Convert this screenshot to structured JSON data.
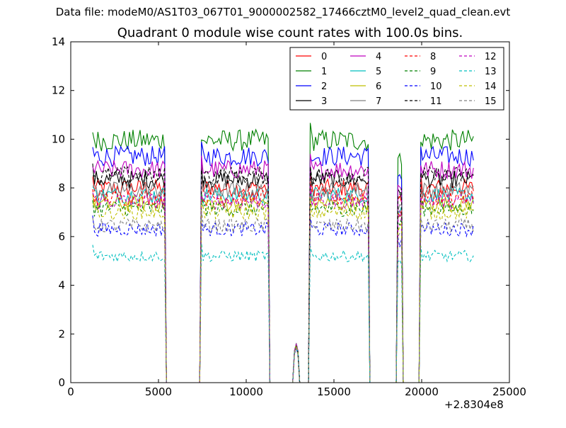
{
  "suptitle": "Data file: modeM0/AS1T03_067T01_9000002582_17466cztM0_level2_quad_clean.evt",
  "chart_data": {
    "type": "line",
    "title": "Quadrant 0 module wise count rates with 100.0s bins.",
    "xlabel": "",
    "ylabel": "",
    "x_offset_label": "+2.8304e8",
    "xlim": [
      0,
      25000
    ],
    "ylim": [
      0,
      14
    ],
    "xticks": [
      0,
      5000,
      10000,
      15000,
      20000,
      25000
    ],
    "xtick_labels": [
      "0",
      "5000",
      "10000",
      "15000",
      "20000",
      "25000"
    ],
    "yticks": [
      0,
      2,
      4,
      6,
      8,
      10,
      12,
      14
    ],
    "ytick_labels": [
      "0",
      "2",
      "4",
      "6",
      "8",
      "10",
      "12",
      "14"
    ],
    "grid": false,
    "legend_position": "top-right",
    "legend_columns": 4,
    "observation_segments": [
      {
        "start": 1250,
        "end": 5350,
        "shape": "plateau"
      },
      {
        "start": 7400,
        "end": 11300,
        "shape": "plateau"
      },
      {
        "start": 12700,
        "end": 13000,
        "shape": "bump"
      },
      {
        "start": 13650,
        "end": 17000,
        "shape": "plateau"
      },
      {
        "start": 18650,
        "end": 18850,
        "shape": "spike"
      },
      {
        "start": 19950,
        "end": 22950,
        "shape": "plateau"
      }
    ],
    "series": [
      {
        "name": "0",
        "color": "#ff0000",
        "dash": "solid",
        "level": 8.0
      },
      {
        "name": "1",
        "color": "#008000",
        "dash": "solid",
        "level": 9.95
      },
      {
        "name": "2",
        "color": "#0000ff",
        "dash": "solid",
        "level": 9.3
      },
      {
        "name": "3",
        "color": "#000000",
        "dash": "solid",
        "level": 8.35
      },
      {
        "name": "4",
        "color": "#bf00bf",
        "dash": "solid",
        "level": 8.75
      },
      {
        "name": "5",
        "color": "#00bfbf",
        "dash": "solid",
        "level": 7.7
      },
      {
        "name": "6",
        "color": "#bfbf00",
        "dash": "solid",
        "level": 7.35
      },
      {
        "name": "7",
        "color": "#808080",
        "dash": "solid",
        "level": 7.9
      },
      {
        "name": "8",
        "color": "#ff0000",
        "dash": "dashed",
        "level": 7.6
      },
      {
        "name": "9",
        "color": "#008000",
        "dash": "dashed",
        "level": 7.15
      },
      {
        "name": "10",
        "color": "#0000ff",
        "dash": "dashed",
        "level": 6.3
      },
      {
        "name": "11",
        "color": "#000000",
        "dash": "dashed",
        "level": 8.5
      },
      {
        "name": "12",
        "color": "#bf00bf",
        "dash": "dashed",
        "level": 7.45
      },
      {
        "name": "13",
        "color": "#00bfbf",
        "dash": "dashed",
        "level": 5.2
      },
      {
        "name": "14",
        "color": "#bfbf00",
        "dash": "dashed",
        "level": 7.0
      },
      {
        "name": "15",
        "color": "#808080",
        "dash": "dashed",
        "level": 6.45
      }
    ]
  }
}
